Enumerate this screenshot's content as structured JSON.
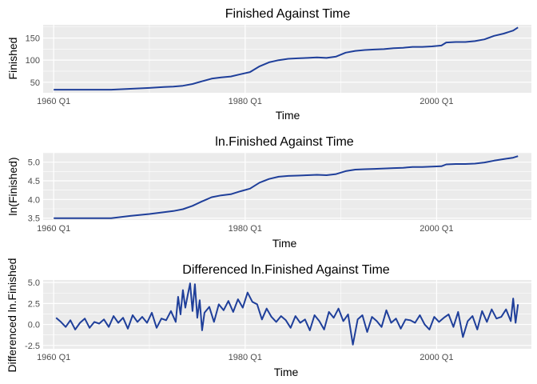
{
  "colors": {
    "panel": "#ebebeb",
    "grid": "#ffffff",
    "line": "#1f3f9a",
    "tick": "#4d4d4d"
  },
  "chart_data": [
    {
      "type": "line",
      "title": "Finished Against Time",
      "xlabel": "Time",
      "ylabel": "Finished",
      "x_ticks": [
        "1960 Q1",
        "1980 Q1",
        "2000 Q1"
      ],
      "y_ticks": [
        "50",
        "100",
        "150"
      ],
      "xlim": [
        1958.9,
        2009.9
      ],
      "ylim": [
        26,
        180
      ],
      "grid": true,
      "series": [
        {
          "x": [
            1960.0,
            1962.0,
            1964.0,
            1966.0,
            1968.0,
            1970.0,
            1971.5,
            1972.5,
            1973.5,
            1974.5,
            1975.5,
            1976.5,
            1977.5,
            1978.5,
            1979.5,
            1980.5,
            1981.5,
            1982.5,
            1983.5,
            1984.5,
            1985.5,
            1986.5,
            1987.5,
            1988.5,
            1989.5,
            1990.5,
            1991.5,
            1992.5,
            1993.5,
            1994.5,
            1995.5,
            1996.5,
            1997.5,
            1998.5,
            1999.5,
            2000.5,
            2001.0,
            2002.0,
            2003.0,
            2004.0,
            2005.0,
            2006.0,
            2007.0,
            2008.0,
            2008.5
          ],
          "values": [
            33,
            33,
            33,
            33,
            35,
            37,
            39,
            40,
            42,
            46,
            52,
            58,
            61,
            63,
            68,
            73,
            86,
            95,
            100,
            103,
            104,
            105,
            106,
            105,
            108,
            117,
            121,
            123,
            124,
            125,
            127,
            128,
            130,
            130,
            131,
            133,
            140,
            141,
            141,
            143,
            147,
            155,
            160,
            167,
            174
          ]
        }
      ]
    },
    {
      "type": "line",
      "title": "ln.Finished Against Time",
      "xlabel": "Time",
      "ylabel": "ln(Finished)",
      "x_ticks": [
        "1960 Q1",
        "1980 Q1",
        "2000 Q1"
      ],
      "y_ticks": [
        "3.5",
        "4.0",
        "4.5",
        "5.0"
      ],
      "xlim": [
        1958.9,
        2009.9
      ],
      "ylim": [
        3.45,
        5.25
      ],
      "grid": true,
      "series": [
        {
          "x": [
            1960.0,
            1962.0,
            1964.0,
            1966.0,
            1968.0,
            1970.0,
            1971.5,
            1972.5,
            1973.5,
            1974.5,
            1975.5,
            1976.5,
            1977.5,
            1978.5,
            1979.5,
            1980.5,
            1981.5,
            1982.5,
            1983.5,
            1984.5,
            1985.5,
            1986.5,
            1987.5,
            1988.5,
            1989.5,
            1990.5,
            1991.5,
            1992.5,
            1993.5,
            1994.5,
            1995.5,
            1996.5,
            1997.5,
            1998.5,
            1999.5,
            2000.5,
            2001.0,
            2002.0,
            2003.0,
            2004.0,
            2005.0,
            2006.0,
            2007.0,
            2008.0,
            2008.5
          ],
          "values": [
            3.5,
            3.5,
            3.5,
            3.5,
            3.56,
            3.61,
            3.66,
            3.69,
            3.74,
            3.83,
            3.95,
            4.06,
            4.11,
            4.14,
            4.22,
            4.29,
            4.45,
            4.55,
            4.61,
            4.63,
            4.64,
            4.65,
            4.66,
            4.65,
            4.68,
            4.76,
            4.8,
            4.81,
            4.82,
            4.83,
            4.84,
            4.85,
            4.87,
            4.87,
            4.88,
            4.89,
            4.94,
            4.95,
            4.95,
            4.96,
            4.99,
            5.04,
            5.08,
            5.12,
            5.16
          ]
        }
      ]
    },
    {
      "type": "line",
      "title": "Differenced ln.Finished Against Time",
      "xlabel": "Time",
      "ylabel": "Differenced ln.Finished",
      "x_ticks": [
        "1960 Q1",
        "1980 Q1",
        "2000 Q1"
      ],
      "y_ticks": [
        "-2.5",
        "0.0",
        "2.5",
        "5.0"
      ],
      "xlim": [
        1958.9,
        2009.9
      ],
      "ylim": [
        -2.9,
        5.3
      ],
      "grid": true,
      "series": [
        {
          "x": [
            1960.25,
            1960.75,
            1961.25,
            1961.75,
            1962.25,
            1962.75,
            1963.25,
            1963.75,
            1964.25,
            1964.75,
            1965.25,
            1965.75,
            1966.25,
            1966.75,
            1967.25,
            1967.75,
            1968.25,
            1968.75,
            1969.25,
            1969.75,
            1970.25,
            1970.75,
            1971.25,
            1971.75,
            1972.25,
            1972.75,
            1973.0,
            1973.25,
            1973.5,
            1973.75,
            1974.0,
            1974.25,
            1974.5,
            1974.75,
            1975.0,
            1975.25,
            1975.5,
            1975.75,
            1976.25,
            1976.75,
            1977.25,
            1977.75,
            1978.25,
            1978.75,
            1979.25,
            1979.75,
            1980.25,
            1980.75,
            1981.25,
            1981.75,
            1982.25,
            1982.75,
            1983.25,
            1983.75,
            1984.25,
            1984.75,
            1985.25,
            1985.75,
            1986.25,
            1986.75,
            1987.25,
            1987.75,
            1988.25,
            1988.75,
            1989.25,
            1989.75,
            1990.25,
            1990.75,
            1991.25,
            1991.75,
            1992.25,
            1992.75,
            1993.25,
            1993.75,
            1994.25,
            1994.75,
            1995.25,
            1995.75,
            1996.25,
            1996.75,
            1997.25,
            1997.75,
            1998.25,
            1998.75,
            1999.25,
            1999.75,
            2000.25,
            2000.75,
            2001.25,
            2001.75,
            2002.25,
            2002.75,
            2003.25,
            2003.75,
            2004.25,
            2004.75,
            2005.25,
            2005.75,
            2006.25,
            2006.75,
            2007.25,
            2007.75,
            2008.0,
            2008.25,
            2008.5
          ],
          "values": [
            0.8,
            0.3,
            -0.3,
            0.5,
            -0.6,
            0.2,
            0.7,
            -0.4,
            0.3,
            0.1,
            0.6,
            -0.3,
            1.0,
            0.2,
            0.8,
            -0.5,
            1.1,
            0.3,
            0.9,
            0.2,
            1.4,
            -0.4,
            0.7,
            0.5,
            1.6,
            0.3,
            3.3,
            1.2,
            4.1,
            2.0,
            3.5,
            4.9,
            1.6,
            4.8,
            0.8,
            2.9,
            -0.7,
            1.4,
            2.1,
            0.3,
            2.4,
            1.7,
            2.8,
            1.5,
            3.0,
            2.0,
            3.8,
            2.7,
            2.4,
            0.6,
            1.9,
            0.9,
            0.3,
            1.0,
            0.5,
            -0.4,
            1.0,
            0.2,
            0.6,
            -0.7,
            1.1,
            0.4,
            -0.6,
            1.5,
            0.8,
            1.9,
            0.4,
            1.2,
            -2.4,
            0.6,
            1.1,
            -0.9,
            0.9,
            0.4,
            -0.3,
            1.7,
            0.2,
            0.7,
            -0.5,
            0.6,
            0.5,
            0.2,
            1.1,
            0.0,
            -0.6,
            0.9,
            0.3,
            0.8,
            1.2,
            -0.3,
            1.5,
            -1.5,
            0.4,
            1.0,
            -0.6,
            1.6,
            0.3,
            1.8,
            0.7,
            0.9,
            1.8,
            0.4,
            3.1,
            0.2,
            2.4
          ]
        }
      ]
    }
  ]
}
